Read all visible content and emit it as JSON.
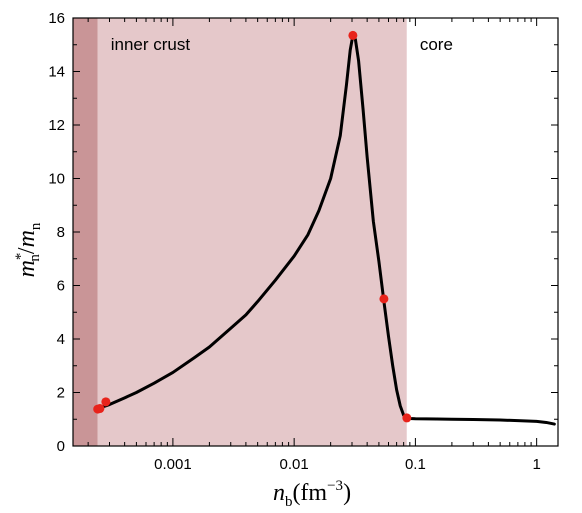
{
  "chart_data": {
    "type": "line",
    "title": "",
    "xlabel": {
      "base": "n",
      "sub": "b",
      "unit_open": "(fm",
      "unit_sup": "−3",
      "unit_close": ")"
    },
    "ylabel": {
      "base": "m",
      "sup": "*",
      "sub": "n",
      "slash": "/",
      "base2": "m",
      "sub2": "n"
    },
    "xscale": "log",
    "xlim": [
      0.00015,
      1.5
    ],
    "ylim": [
      0,
      16
    ],
    "grid": false,
    "x_ticks": [
      {
        "value": 0.001,
        "label": "0.001"
      },
      {
        "value": 0.01,
        "label": "0.01"
      },
      {
        "value": 0.1,
        "label": "0.1"
      },
      {
        "value": 1,
        "label": "1"
      }
    ],
    "y_ticks": [
      0,
      2,
      4,
      6,
      8,
      10,
      12,
      14,
      16
    ],
    "regions": [
      {
        "name": "outer-region",
        "x_from": 0.00015,
        "x_to": 0.00024,
        "label": "",
        "color": "#c99597"
      },
      {
        "name": "inner-crust",
        "x_from": 0.00024,
        "x_to": 0.085,
        "label": "inner crust",
        "color": "#e5c8ca"
      },
      {
        "name": "core",
        "x_from": 0.085,
        "x_to": 1.5,
        "label": "core",
        "color": "#ffffff"
      }
    ],
    "series": [
      {
        "line_color": "#000000",
        "x": [
          0.00024,
          0.0003,
          0.0004,
          0.0005,
          0.0007,
          0.001,
          0.0015,
          0.002,
          0.003,
          0.004,
          0.005,
          0.007,
          0.01,
          0.013,
          0.016,
          0.02,
          0.024,
          0.027,
          0.029,
          0.0305,
          0.032,
          0.034,
          0.037,
          0.04,
          0.045,
          0.05,
          0.055,
          0.06,
          0.065,
          0.07,
          0.075,
          0.08,
          0.085,
          0.09,
          0.1,
          0.15,
          0.2,
          0.3,
          0.5,
          0.7,
          1.0,
          1.2,
          1.4
        ],
        "y": [
          1.4,
          1.55,
          1.8,
          2.0,
          2.35,
          2.75,
          3.3,
          3.7,
          4.4,
          4.9,
          5.4,
          6.2,
          7.1,
          7.9,
          8.8,
          10.0,
          11.6,
          13.5,
          14.8,
          15.35,
          15.2,
          14.4,
          12.6,
          10.8,
          8.4,
          6.9,
          5.4,
          4.1,
          3.0,
          2.1,
          1.5,
          1.15,
          1.05,
          1.03,
          1.02,
          1.01,
          1.0,
          0.99,
          0.97,
          0.95,
          0.92,
          0.88,
          0.82
        ]
      }
    ],
    "markers": {
      "color": "#e8231b",
      "points": [
        {
          "x": 0.00024,
          "y": 1.38
        },
        {
          "x": 0.00025,
          "y": 1.4
        },
        {
          "x": 0.00028,
          "y": 1.65
        },
        {
          "x": 0.0305,
          "y": 15.35
        },
        {
          "x": 0.055,
          "y": 5.5
        },
        {
          "x": 0.085,
          "y": 1.05
        }
      ]
    }
  }
}
